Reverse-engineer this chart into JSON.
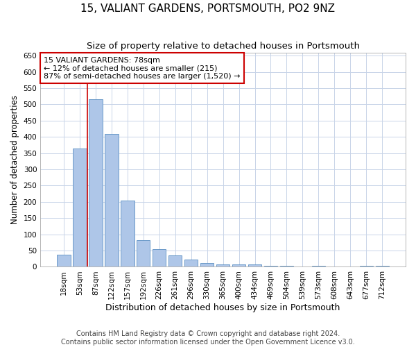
{
  "title": "15, VALIANT GARDENS, PORTSMOUTH, PO2 9NZ",
  "subtitle": "Size of property relative to detached houses in Portsmouth",
  "xlabel": "Distribution of detached houses by size in Portsmouth",
  "ylabel": "Number of detached properties",
  "categories": [
    "18sqm",
    "53sqm",
    "87sqm",
    "122sqm",
    "157sqm",
    "192sqm",
    "226sqm",
    "261sqm",
    "296sqm",
    "330sqm",
    "365sqm",
    "400sqm",
    "434sqm",
    "469sqm",
    "504sqm",
    "539sqm",
    "573sqm",
    "608sqm",
    "643sqm",
    "677sqm",
    "712sqm"
  ],
  "values": [
    37,
    365,
    515,
    410,
    205,
    82,
    55,
    35,
    22,
    12,
    8,
    8,
    8,
    3,
    3,
    0,
    3,
    0,
    0,
    3,
    3
  ],
  "bar_color": "#aec6e8",
  "bar_edge_color": "#5a8fc2",
  "annotation_line1": "15 VALIANT GARDENS: 78sqm",
  "annotation_line2": "← 12% of detached houses are smaller (215)",
  "annotation_line3": "87% of semi-detached houses are larger (1,520) →",
  "annotation_box_color": "#ffffff",
  "annotation_box_edge_color": "#cc0000",
  "vline_color": "#cc0000",
  "vline_x": 1.5,
  "ylim": [
    0,
    660
  ],
  "yticks": [
    0,
    50,
    100,
    150,
    200,
    250,
    300,
    350,
    400,
    450,
    500,
    550,
    600,
    650
  ],
  "footer": "Contains HM Land Registry data © Crown copyright and database right 2024.\nContains public sector information licensed under the Open Government Licence v3.0.",
  "title_fontsize": 11,
  "subtitle_fontsize": 9.5,
  "xlabel_fontsize": 9,
  "ylabel_fontsize": 8.5,
  "tick_fontsize": 7.5,
  "footer_fontsize": 7,
  "annotation_fontsize": 8,
  "background_color": "#ffffff",
  "grid_color": "#c8d4e8",
  "grid_alpha": 1.0
}
